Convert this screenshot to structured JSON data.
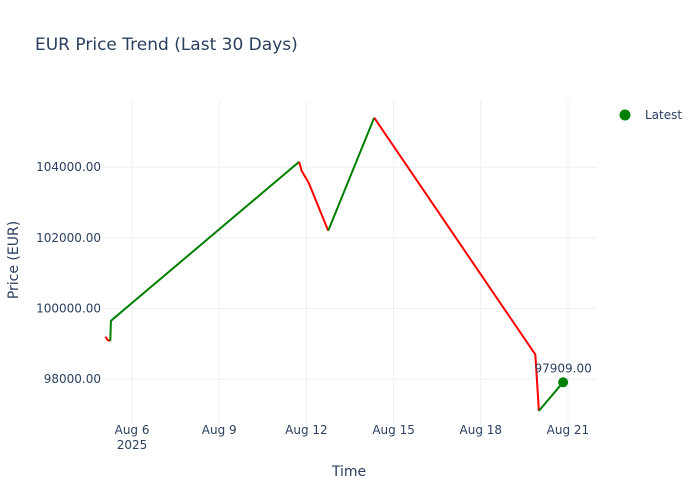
{
  "chart_data": {
    "type": "line",
    "title": "EUR Price Trend (Last 30 Days)",
    "xlabel": "Time",
    "ylabel": "Price (EUR)",
    "ylim": [
      96700,
      105900
    ],
    "xlim": [
      "2025-08-05 00:00",
      "2025-08-22 00:00"
    ],
    "y_ticks": [
      98000,
      100000,
      102000,
      104000
    ],
    "y_tick_labels": [
      "98000.00",
      "100000.00",
      "102000.00",
      "104000.00"
    ],
    "x_ticks": [
      "2025-08-06",
      "2025-08-09",
      "2025-08-12",
      "2025-08-15",
      "2025-08-18",
      "2025-08-21"
    ],
    "x_tick_labels": [
      "Aug 6",
      "Aug 9",
      "Aug 12",
      "Aug 15",
      "Aug 18",
      "Aug 21"
    ],
    "x_tick_year": "2025",
    "grid": true,
    "legend": {
      "position": "top-right"
    },
    "colors": {
      "up": "#008000",
      "down": "#ff0000",
      "latest": "#008000"
    },
    "segments": [
      {
        "direction": "down",
        "points": [
          [
            "2025-08-05 02:00",
            99200
          ],
          [
            "2025-08-05 04:00",
            99100
          ],
          [
            "2025-08-05 06:00",
            99080
          ]
        ]
      },
      {
        "direction": "up",
        "points": [
          [
            "2025-08-05 06:00",
            99080
          ],
          [
            "2025-08-05 06:30",
            99650
          ],
          [
            "2025-08-11 18:00",
            104150
          ]
        ]
      },
      {
        "direction": "down",
        "points": [
          [
            "2025-08-11 18:00",
            104150
          ],
          [
            "2025-08-11 20:00",
            103900
          ],
          [
            "2025-08-12 02:00",
            103550
          ],
          [
            "2025-08-12 18:00",
            102200
          ]
        ]
      },
      {
        "direction": "up",
        "points": [
          [
            "2025-08-12 18:00",
            102200
          ],
          [
            "2025-08-14 08:00",
            105400
          ]
        ]
      },
      {
        "direction": "down",
        "points": [
          [
            "2025-08-14 08:00",
            105400
          ],
          [
            "2025-08-19 20:00",
            98750
          ],
          [
            "2025-08-19 21:00",
            98700
          ],
          [
            "2025-08-20 00:00",
            97100
          ]
        ]
      },
      {
        "direction": "up",
        "points": [
          [
            "2025-08-20 00:00",
            97100
          ],
          [
            "2025-08-20 20:00",
            97909
          ]
        ]
      }
    ],
    "latest": {
      "name": "Latest",
      "x": "2025-08-20 20:00",
      "y": 97909,
      "label": "97909.00"
    }
  }
}
